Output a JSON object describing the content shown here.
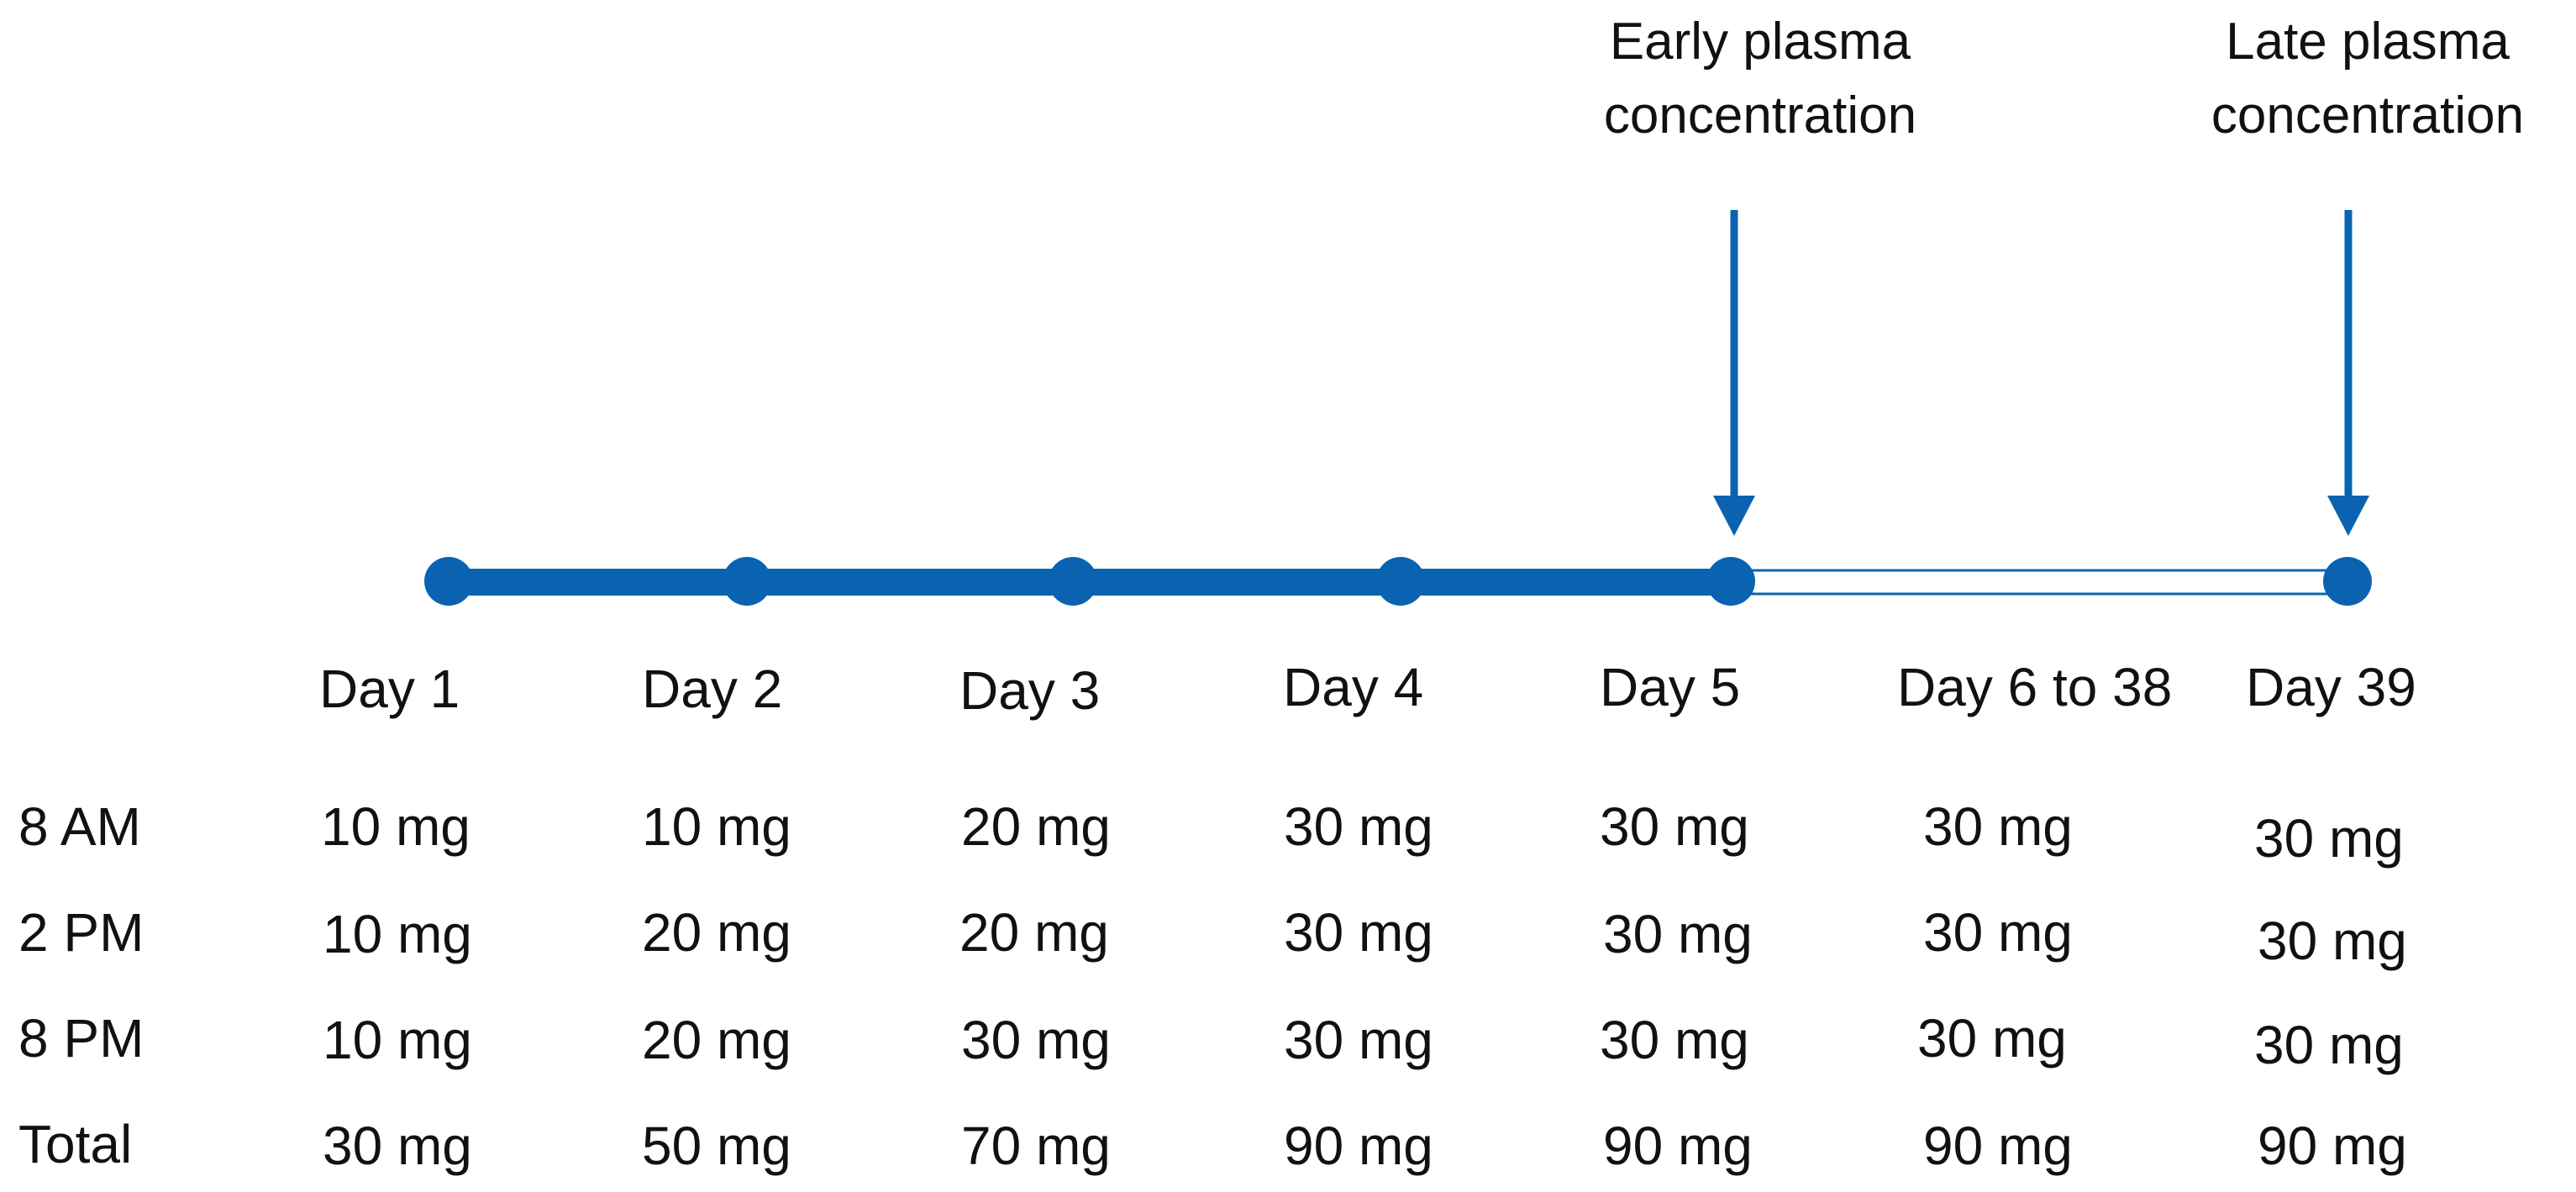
{
  "diagram": {
    "accent_color": "#0a63b0",
    "annotations": [
      {
        "line1": "Early plasma",
        "line2": "concentration",
        "points_to": "Day 5"
      },
      {
        "line1": "Late plasma",
        "line2": "concentration",
        "points_to": "Day 39"
      }
    ],
    "timeline": {
      "days": [
        "Day 1",
        "Day 2",
        "Day 3",
        "Day 4",
        "Day 5",
        "Day 6 to 38",
        "Day 39"
      ],
      "solid_segment": "Day 1 to Day 5",
      "outlined_segment": "Day 5 to Day 39",
      "markers": [
        "Day 1",
        "Day 2",
        "Day 3",
        "Day 4",
        "Day 5",
        "Day 39"
      ]
    },
    "dose_table": {
      "rows": [
        {
          "label": "8 AM",
          "values": [
            "10 mg",
            "10 mg",
            "20 mg",
            "30 mg",
            "30 mg",
            "30 mg",
            "30 mg"
          ]
        },
        {
          "label": "2 PM",
          "values": [
            "10 mg",
            "20 mg",
            "20 mg",
            "30 mg",
            "30 mg",
            "30 mg",
            "30 mg"
          ]
        },
        {
          "label": "8 PM",
          "values": [
            "10 mg",
            "20 mg",
            "30 mg",
            "30 mg",
            "30 mg",
            "30 mg",
            "30 mg"
          ]
        },
        {
          "label": "Total",
          "values": [
            "30 mg",
            "50 mg",
            "70 mg",
            "90 mg",
            "90 mg",
            "90 mg",
            "90 mg"
          ]
        }
      ]
    }
  }
}
